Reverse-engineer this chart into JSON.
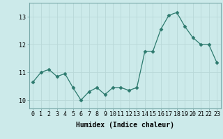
{
  "x": [
    0,
    1,
    2,
    3,
    4,
    5,
    6,
    7,
    8,
    9,
    10,
    11,
    12,
    13,
    14,
    15,
    16,
    17,
    18,
    19,
    20,
    21,
    22,
    23
  ],
  "y": [
    10.65,
    11.0,
    11.1,
    10.85,
    10.95,
    10.45,
    10.0,
    10.3,
    10.45,
    10.2,
    10.45,
    10.45,
    10.35,
    10.45,
    11.75,
    11.75,
    12.55,
    13.05,
    13.15,
    12.65,
    12.25,
    12.0,
    12.0,
    11.35
  ],
  "line_color": "#2d7a6e",
  "marker": "D",
  "marker_size": 2.5,
  "bg_color": "#cceaea",
  "grid_color": "#b8d8d8",
  "xlabel": "Humidex (Indice chaleur)",
  "ylim": [
    9.7,
    13.5
  ],
  "xlim": [
    -0.5,
    23.5
  ],
  "yticks": [
    10,
    11,
    12,
    13
  ],
  "xticks": [
    0,
    1,
    2,
    3,
    4,
    5,
    6,
    7,
    8,
    9,
    10,
    11,
    12,
    13,
    14,
    15,
    16,
    17,
    18,
    19,
    20,
    21,
    22,
    23
  ],
  "label_fontsize": 7,
  "tick_fontsize": 6
}
